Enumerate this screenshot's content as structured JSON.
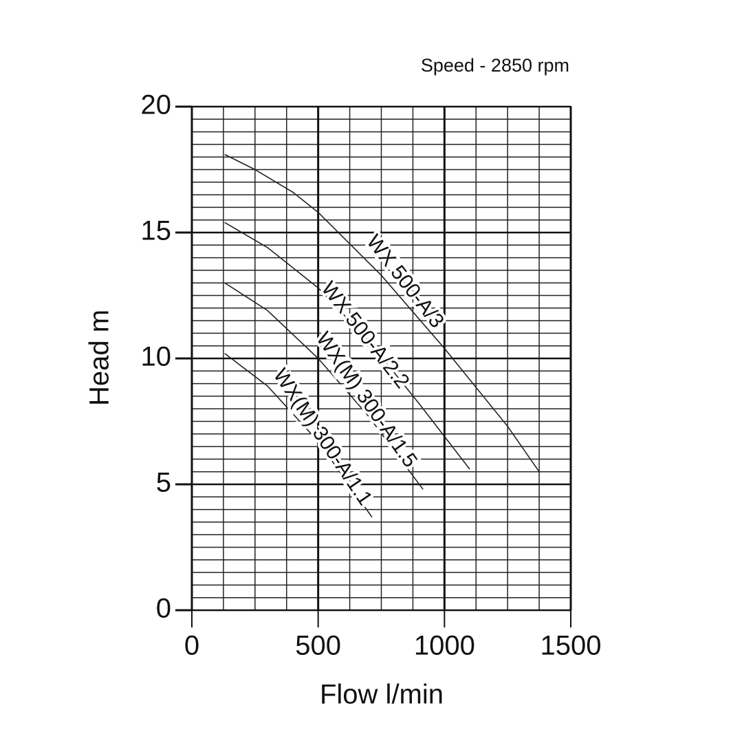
{
  "chart_data": {
    "type": "line",
    "subtitle": "Speed - 2850 rpm",
    "x_label": "Flow l/min",
    "y_label": "Head m",
    "xlim": [
      0,
      1500
    ],
    "xticks": [
      0,
      500,
      1000,
      1500
    ],
    "ylim": [
      0,
      20
    ],
    "yticks": [
      0,
      5,
      10,
      15,
      20
    ],
    "grid": true,
    "series": [
      {
        "name": "WX 500-A/3",
        "color": "#222222",
        "x": [
          130,
          250,
          400,
          500,
          750,
          1000,
          1250,
          1375
        ],
        "values": [
          18.1,
          17.5,
          16.6,
          15.8,
          13.3,
          10.4,
          7.3,
          5.5
        ]
      },
      {
        "name": "WX 500-A/2.2",
        "color": "#222222",
        "x": [
          130,
          300,
          500,
          700,
          900,
          1100
        ],
        "values": [
          15.4,
          14.4,
          12.8,
          10.7,
          8.2,
          5.6
        ]
      },
      {
        "name": "WX(M) 300-A/1.5",
        "color": "#222222",
        "x": [
          130,
          300,
          500,
          700,
          915
        ],
        "values": [
          13.0,
          11.9,
          10.0,
          7.7,
          4.8
        ]
      },
      {
        "name": "WX(M) 300-A/1.1",
        "color": "#222222",
        "x": [
          130,
          300,
          500,
          713
        ],
        "values": [
          10.2,
          8.9,
          6.7,
          3.7
        ]
      }
    ]
  }
}
